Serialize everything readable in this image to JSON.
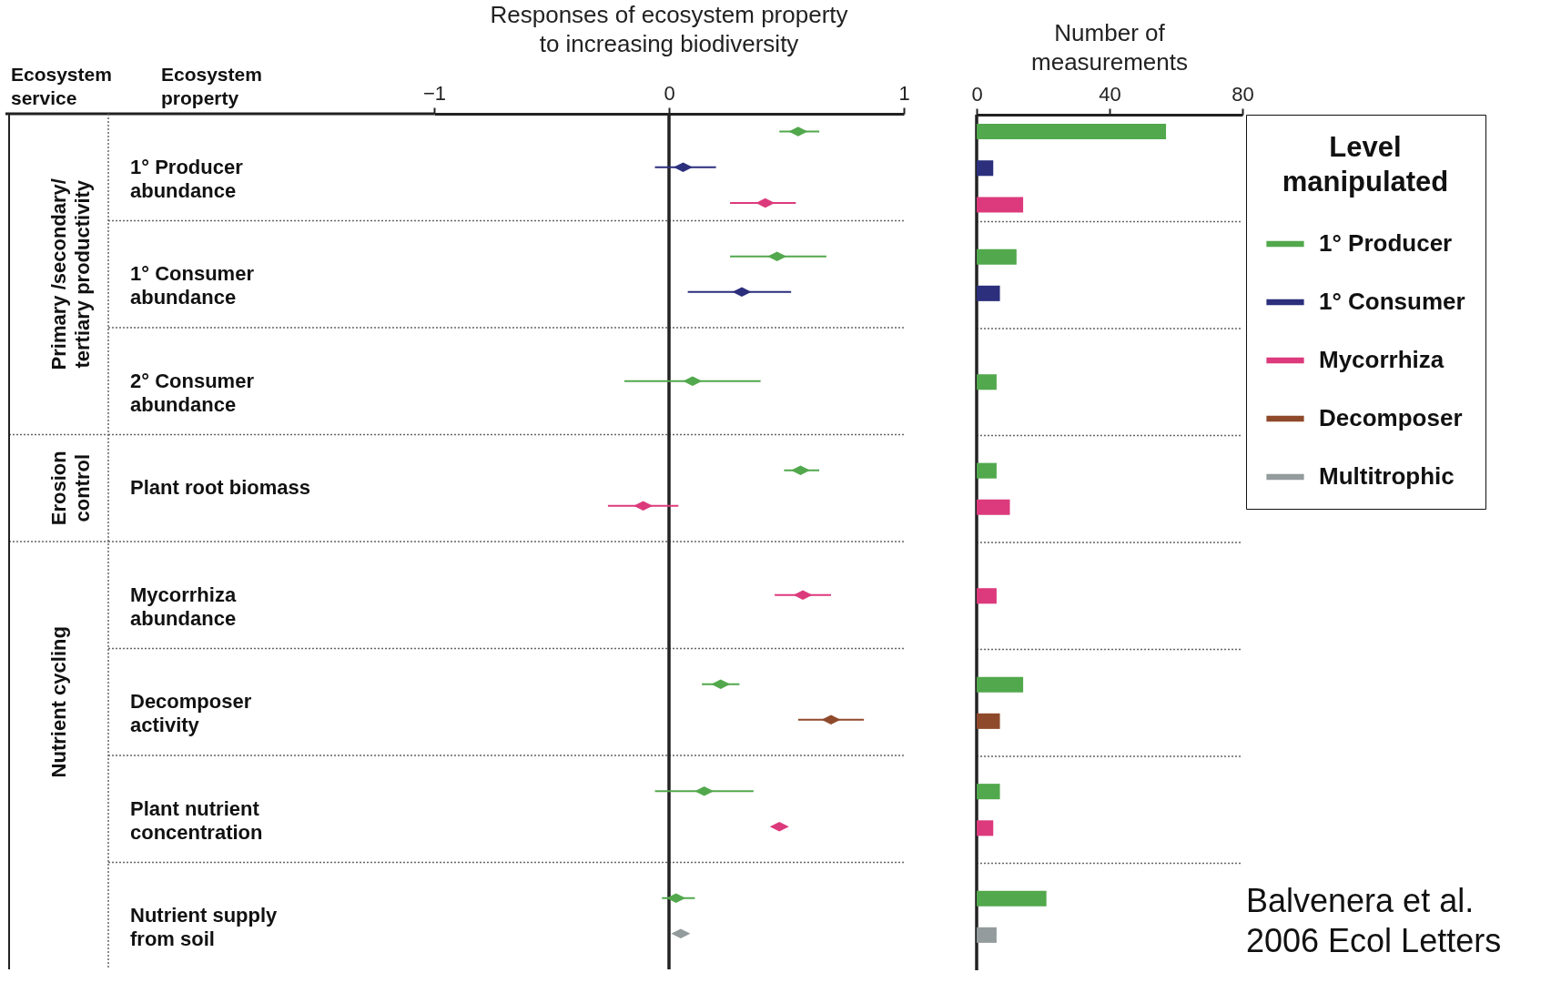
{
  "chart_data": [
    {
      "type": "scatter",
      "title": "Responses of ecosystem property\nto increasing biodiversity",
      "ylabel": "Ecosystem\nproperty",
      "orientation": "horizontal",
      "marker": "diamond",
      "categories": [
        "1° Producer\nabundance",
        "1° Consumer\nabundance",
        "2° Consumer\nabundance",
        "Plant root biomass",
        "Mycorrhiza\nabundance",
        "Decomposer\n\nactivity",
        "Plant nutrient\n\nconcentration",
        "Nutrient supply\n from soil"
      ],
      "y2_categories": [
        null,
        "Primary /secondary/\ntertiary productivity",
        null,
        "Erosion\ncontrol",
        null,
        "Nutrient cycling",
        null,
        null
      ],
      "xlim": [
        -1,
        1
      ],
      "xticks": [
        {
          "value": -1,
          "label": "−1"
        },
        0,
        1
      ],
      "ref_lines": [
        {
          "axis": "x",
          "value": 0,
          "color": "#222222"
        }
      ],
      "annotations": [
        "Ecosystem\nservice"
      ],
      "series": [
        {
          "color": "#52a84c",
          "values": [
            0.55,
            0.46,
            0.1,
            0.56,
            null,
            0.22,
            0.15,
            0.03
          ],
          "errors": [
            [
              0.47,
              0.64
            ],
            [
              0.26,
              0.67
            ],
            [
              -0.19,
              0.39
            ],
            [
              0.49,
              0.64
            ],
            null,
            [
              0.14,
              0.3
            ],
            [
              -0.06,
              0.36
            ],
            [
              -0.03,
              0.11
            ]
          ]
        },
        {
          "color": "#2b2f7c",
          "values": [
            0.06,
            0.31,
            null,
            null,
            null,
            null,
            null,
            null
          ],
          "errors": [
            [
              -0.06,
              0.2
            ],
            [
              0.08,
              0.52
            ],
            null,
            null,
            null,
            null,
            null,
            null
          ]
        },
        {
          "color": "#dc3a7c",
          "values": [
            0.41,
            null,
            null,
            -0.11,
            0.57,
            null,
            0.47,
            null
          ],
          "errors": [
            [
              0.26,
              0.54
            ],
            null,
            null,
            [
              -0.26,
              0.04
            ],
            [
              0.45,
              0.69
            ],
            null,
            null,
            null
          ]
        },
        {
          "color": "#8f4a2c",
          "values": [
            null,
            null,
            null,
            null,
            null,
            0.69,
            null,
            null
          ],
          "errors": [
            null,
            null,
            null,
            null,
            null,
            [
              0.55,
              0.83
            ],
            null,
            null
          ]
        },
        {
          "color": "#939b9c",
          "values": [
            null,
            null,
            null,
            null,
            null,
            null,
            null,
            0.05
          ]
        }
      ]
    },
    {
      "type": "bar",
      "title": "Number of\nmeasurements",
      "orientation": "horizontal",
      "tick_labels": "x",
      "legend": "right",
      "legend_title": "Level\nmanipulated",
      "categories": [
        null,
        null,
        null,
        null,
        null,
        null,
        null,
        null
      ],
      "xlim": [
        0,
        80
      ],
      "xticks": [
        0,
        40,
        80
      ],
      "annotations": [
        "Balvenera et al.\n2006 Ecol Letters"
      ],
      "series": [
        {
          "name": "1° Producer",
          "color": "#52a84c",
          "values": [
            57,
            12,
            6,
            6,
            null,
            14,
            7,
            21
          ]
        },
        {
          "name": "1° Consumer",
          "color": "#2b2f7c",
          "values": [
            5,
            7,
            null,
            null,
            null,
            null,
            null,
            null
          ]
        },
        {
          "name": "Mycorrhiza",
          "color": "#dc3a7c",
          "values": [
            14,
            null,
            null,
            10,
            6,
            null,
            5,
            null
          ]
        },
        {
          "name": "Decomposer",
          "color": "#8f4a2c",
          "values": [
            null,
            null,
            null,
            null,
            null,
            7,
            null,
            null
          ]
        },
        {
          "name": "Multitrophic",
          "color": "#939b9c",
          "values": [
            null,
            null,
            null,
            null,
            null,
            null,
            null,
            6
          ]
        }
      ]
    }
  ]
}
